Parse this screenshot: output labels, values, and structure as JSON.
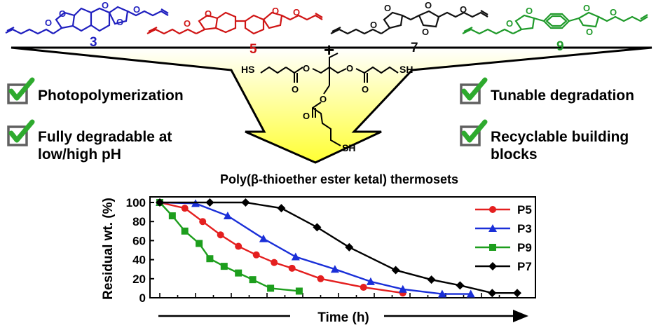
{
  "compounds": [
    {
      "id": "3",
      "color": "#1f1fbf"
    },
    {
      "id": "5",
      "color": "#d01515"
    },
    {
      "id": "7",
      "color": "#111111"
    },
    {
      "id": "9",
      "color": "#1f9a2a"
    }
  ],
  "crosslinker": {
    "plus": "+",
    "thiol_left": "HS",
    "thiol_right": "SH",
    "thiol_bottom": "SH",
    "atom_o": "O"
  },
  "benefits_left": [
    {
      "line1": "Photopolymerization",
      "line2": ""
    },
    {
      "line1": "Fully degradable at",
      "line2": "low/high pH"
    }
  ],
  "benefits_right": [
    {
      "line1": "Tunable degradation",
      "line2": ""
    },
    {
      "line1": "Recyclable building",
      "line2": "blocks"
    }
  ],
  "colors": {
    "check": "#2eaa2e",
    "box": "#606060",
    "funnel_top": "#ffffff",
    "funnel_bottom": "#ffff33"
  },
  "chart_data": {
    "type": "line",
    "title": "Poly(β-thioether ester ketal) thermosets",
    "xlabel": "Time (h)",
    "ylabel": "Residual wt. (%)",
    "ylim": [
      0,
      100
    ],
    "yticks": [
      0,
      20,
      40,
      60,
      80,
      100
    ],
    "xlim": [
      0,
      10
    ],
    "legend_position": "top-right",
    "series": [
      {
        "name": "P5",
        "color": "#e41f1f",
        "marker": "circle",
        "x": [
          0,
          0.7,
          1.2,
          1.7,
          2.2,
          2.7,
          3.2,
          3.7,
          4.5,
          5.7,
          6.8
        ],
        "y": [
          100,
          94,
          80,
          66,
          54,
          45,
          37,
          31,
          20,
          11,
          5
        ]
      },
      {
        "name": "P3",
        "color": "#1a2fd8",
        "marker": "triangle",
        "x": [
          0,
          1,
          1.9,
          2.9,
          3.8,
          4.9,
          5.9,
          6.8,
          7.9,
          8.7
        ],
        "y": [
          100,
          99,
          86,
          62,
          43,
          30,
          17,
          9,
          4,
          4
        ]
      },
      {
        "name": "P9",
        "color": "#1d9e1d",
        "marker": "square",
        "x": [
          0,
          0.35,
          0.7,
          1.1,
          1.4,
          1.8,
          2.2,
          2.6,
          3.1,
          3.9
        ],
        "y": [
          100,
          86,
          70,
          57,
          41,
          33,
          26,
          19,
          10,
          7
        ]
      },
      {
        "name": "P7",
        "color": "#000000",
        "marker": "diamond",
        "x": [
          0,
          1.4,
          2.4,
          3.4,
          4.4,
          5.3,
          6.6,
          7.6,
          8.4,
          9.3,
          10
        ],
        "y": [
          100,
          100,
          100,
          94,
          74,
          53,
          29,
          19,
          13,
          5,
          5
        ]
      }
    ]
  }
}
